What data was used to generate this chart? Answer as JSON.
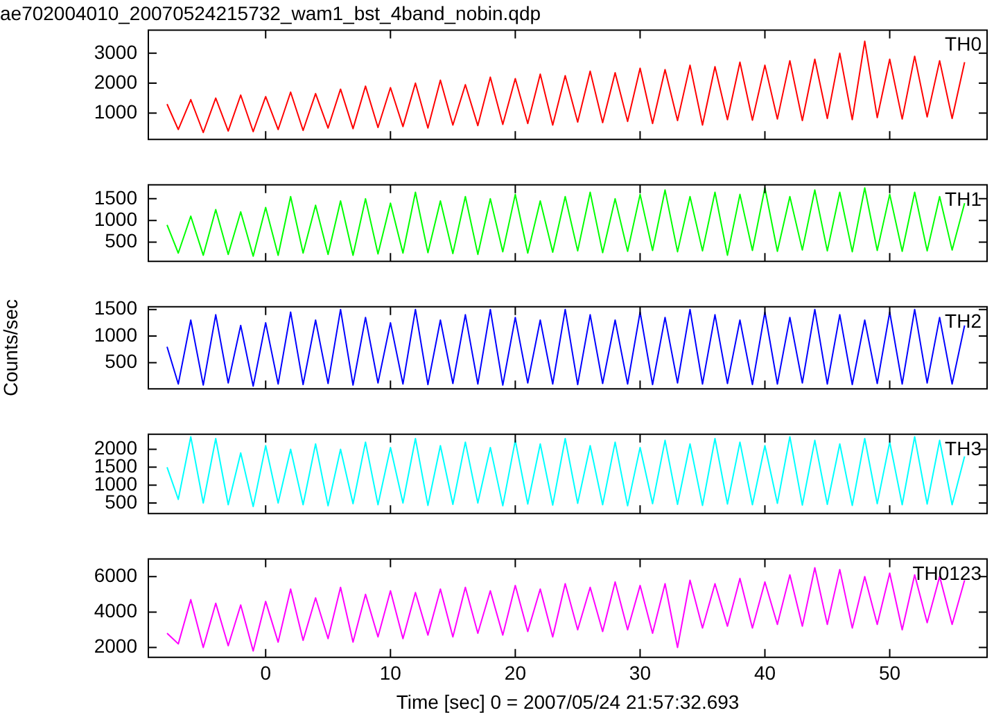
{
  "chart_data": [
    {
      "type": "line",
      "title": "ae702004010_20070524215732_wam1_bst_4band_nobin.qdp",
      "tick_labels": "y",
      "xlim": [
        -9.4,
        57.8
      ],
      "xticks": [
        0,
        10,
        20,
        30,
        40,
        50
      ],
      "ylim": [
        120,
        3770
      ],
      "yticks": [
        1000,
        2000,
        3000
      ],
      "x": [
        -7.9,
        -7,
        -6,
        -5,
        -4,
        -3,
        -2,
        -1,
        0,
        1,
        2,
        3,
        4,
        5,
        6,
        7,
        8,
        9,
        10,
        11,
        12,
        13,
        14,
        15,
        16,
        17,
        18,
        19,
        20,
        21,
        22,
        23,
        24,
        25,
        26,
        27,
        28,
        29,
        30,
        31,
        32,
        33,
        34,
        35,
        36,
        37,
        38,
        39,
        40,
        41,
        42,
        43,
        44,
        45,
        46,
        47,
        48,
        49,
        50,
        51,
        52,
        53,
        54,
        55,
        56
      ],
      "series": [
        {
          "name": "TH0",
          "color": "#ff0000",
          "values": [
            1300,
            450,
            1450,
            350,
            1500,
            400,
            1600,
            380,
            1550,
            450,
            1700,
            420,
            1650,
            500,
            1800,
            480,
            1900,
            520,
            1850,
            550,
            2000,
            500,
            2100,
            600,
            1950,
            580,
            2200,
            620,
            2150,
            650,
            2300,
            600,
            2250,
            700,
            2400,
            680,
            2350,
            720,
            2500,
            650,
            2450,
            750,
            2600,
            600,
            2550,
            780,
            2700,
            760,
            2600,
            800,
            2750,
            750,
            2800,
            820,
            3000,
            780,
            3400,
            850,
            2800,
            800,
            2900,
            870,
            2750,
            820,
            2700
          ]
        }
      ]
    },
    {
      "type": "line",
      "tick_labels": "y",
      "xlim": [
        -9.4,
        57.8
      ],
      "xticks": [
        0,
        10,
        20,
        30,
        40,
        50
      ],
      "ylim": [
        60,
        1820
      ],
      "yticks": [
        500,
        1000,
        1500
      ],
      "x": [
        -7.9,
        -7,
        -6,
        -5,
        -4,
        -3,
        -2,
        -1,
        0,
        1,
        2,
        3,
        4,
        5,
        6,
        7,
        8,
        9,
        10,
        11,
        12,
        13,
        14,
        15,
        16,
        17,
        18,
        19,
        20,
        21,
        22,
        23,
        24,
        25,
        26,
        27,
        28,
        29,
        30,
        31,
        32,
        33,
        34,
        35,
        36,
        37,
        38,
        39,
        40,
        41,
        42,
        43,
        44,
        45,
        46,
        47,
        48,
        49,
        50,
        51,
        52,
        53,
        54,
        55,
        56
      ],
      "series": [
        {
          "name": "TH1",
          "color": "#00ff00",
          "values": [
            900,
            250,
            1100,
            200,
            1250,
            220,
            1200,
            180,
            1300,
            200,
            1550,
            250,
            1350,
            220,
            1450,
            200,
            1500,
            230,
            1400,
            250,
            1650,
            260,
            1450,
            240,
            1550,
            220,
            1500,
            280,
            1600,
            250,
            1450,
            270,
            1550,
            300,
            1650,
            260,
            1500,
            290,
            1600,
            310,
            1700,
            280,
            1550,
            300,
            1650,
            200,
            1600,
            310,
            1750,
            290,
            1550,
            320,
            1700,
            300,
            1650,
            280,
            1750,
            310,
            1600,
            290,
            1650,
            300,
            1550,
            320,
            1400
          ]
        }
      ]
    },
    {
      "type": "line",
      "tick_labels": "y",
      "ylabel": "Counts/sec",
      "xlim": [
        -9.4,
        57.8
      ],
      "xticks": [
        0,
        10,
        20,
        30,
        40,
        50
      ],
      "ylim": [
        10,
        1550
      ],
      "yticks": [
        500,
        1000,
        1500
      ],
      "x": [
        -7.9,
        -7,
        -6,
        -5,
        -4,
        -3,
        -2,
        -1,
        0,
        1,
        2,
        3,
        4,
        5,
        6,
        7,
        8,
        9,
        10,
        11,
        12,
        13,
        14,
        15,
        16,
        17,
        18,
        19,
        20,
        21,
        22,
        23,
        24,
        25,
        26,
        27,
        28,
        29,
        30,
        31,
        32,
        33,
        34,
        35,
        36,
        37,
        38,
        39,
        40,
        41,
        42,
        43,
        44,
        45,
        46,
        47,
        48,
        49,
        50,
        51,
        52,
        53,
        54,
        55,
        56
      ],
      "series": [
        {
          "name": "TH2",
          "color": "#0000ff",
          "values": [
            800,
            100,
            1300,
            80,
            1400,
            120,
            1200,
            60,
            1250,
            100,
            1450,
            90,
            1300,
            110,
            1500,
            80,
            1350,
            120,
            1250,
            100,
            1500,
            90,
            1300,
            110,
            1400,
            100,
            1500,
            80,
            1350,
            120,
            1300,
            100,
            1500,
            90,
            1400,
            110,
            1300,
            100,
            1450,
            90,
            1350,
            120,
            1500,
            100,
            1400,
            110,
            1300,
            90,
            1450,
            100,
            1350,
            120,
            1500,
            100,
            1400,
            90,
            1300,
            110,
            1450,
            100,
            1500,
            120,
            1350,
            100,
            1200
          ]
        }
      ]
    },
    {
      "type": "line",
      "tick_labels": "y",
      "xlim": [
        -9.4,
        57.8
      ],
      "xticks": [
        0,
        10,
        20,
        30,
        40,
        50
      ],
      "ylim": [
        205,
        2420
      ],
      "yticks": [
        500,
        1000,
        1500,
        2000
      ],
      "x": [
        -7.9,
        -7,
        -6,
        -5,
        -4,
        -3,
        -2,
        -1,
        0,
        1,
        2,
        3,
        4,
        5,
        6,
        7,
        8,
        9,
        10,
        11,
        12,
        13,
        14,
        15,
        16,
        17,
        18,
        19,
        20,
        21,
        22,
        23,
        24,
        25,
        26,
        27,
        28,
        29,
        30,
        31,
        32,
        33,
        34,
        35,
        36,
        37,
        38,
        39,
        40,
        41,
        42,
        43,
        44,
        45,
        46,
        47,
        48,
        49,
        50,
        51,
        52,
        53,
        54,
        55,
        56
      ],
      "series": [
        {
          "name": "TH3",
          "color": "#00ffff",
          "values": [
            1500,
            600,
            2350,
            500,
            2300,
            450,
            1900,
            400,
            2100,
            500,
            2000,
            450,
            2150,
            420,
            2000,
            480,
            2200,
            450,
            2050,
            500,
            2300,
            430,
            2100,
            460,
            2200,
            500,
            2050,
            420,
            2250,
            470,
            2150,
            440,
            2300,
            490,
            2100,
            450,
            2200,
            420,
            2050,
            480,
            2250,
            460,
            2150,
            430,
            2300,
            470,
            2200,
            450,
            2100,
            490,
            2350,
            440,
            2250,
            460,
            2150,
            430,
            2300,
            480,
            2200,
            450,
            2350,
            470,
            2250,
            450,
            1800
          ]
        }
      ]
    },
    {
      "type": "line",
      "xlabel": "Time [sec] 0 = 2007/05/24 21:57:32.693",
      "xlim": [
        -9.4,
        57.8
      ],
      "xticks": [
        0,
        10,
        20,
        30,
        40,
        50
      ],
      "ylim": [
        1440,
        7000
      ],
      "yticks": [
        2000,
        4000,
        6000
      ],
      "x": [
        -7.9,
        -7,
        -6,
        -5,
        -4,
        -3,
        -2,
        -1,
        0,
        1,
        2,
        3,
        4,
        5,
        6,
        7,
        8,
        9,
        10,
        11,
        12,
        13,
        14,
        15,
        16,
        17,
        18,
        19,
        20,
        21,
        22,
        23,
        24,
        25,
        26,
        27,
        28,
        29,
        30,
        31,
        32,
        33,
        34,
        35,
        36,
        37,
        38,
        39,
        40,
        41,
        42,
        43,
        44,
        45,
        46,
        47,
        48,
        49,
        50,
        51,
        52,
        53,
        54,
        55,
        56
      ],
      "series": [
        {
          "name": "TH0123",
          "color": "#ff00ff",
          "values": [
            2800,
            2200,
            4700,
            2000,
            4500,
            2100,
            4400,
            1800,
            4600,
            2300,
            5300,
            2400,
            4800,
            2500,
            5400,
            2300,
            5000,
            2600,
            5200,
            2500,
            5100,
            2700,
            5300,
            2600,
            5400,
            2800,
            5200,
            2700,
            5500,
            2900,
            5300,
            2600,
            5600,
            3000,
            5400,
            2900,
            5700,
            3000,
            5500,
            2800,
            5600,
            2000,
            5800,
            3100,
            5600,
            3200,
            5900,
            3100,
            5700,
            3300,
            6100,
            3200,
            6500,
            3300,
            6400,
            3100,
            6000,
            3300,
            6200,
            3000,
            6100,
            3400,
            6000,
            3300,
            5800
          ]
        }
      ]
    }
  ]
}
